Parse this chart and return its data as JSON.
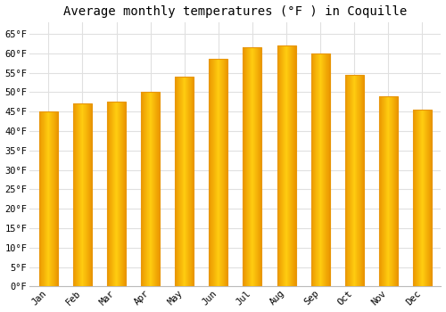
{
  "title": "Average monthly temperatures (°F ) in Coquille",
  "months": [
    "Jan",
    "Feb",
    "Mar",
    "Apr",
    "May",
    "Jun",
    "Jul",
    "Aug",
    "Sep",
    "Oct",
    "Nov",
    "Dec"
  ],
  "values": [
    45.0,
    47.0,
    47.5,
    50.0,
    54.0,
    58.5,
    61.5,
    62.0,
    60.0,
    54.5,
    49.0,
    45.5
  ],
  "bar_color_face": "#FFC020",
  "bar_color_edge": "#E8960A",
  "ylim": [
    0,
    68
  ],
  "yticks": [
    0,
    5,
    10,
    15,
    20,
    25,
    30,
    35,
    40,
    45,
    50,
    55,
    60,
    65
  ],
  "ytick_labels": [
    "0°F",
    "5°F",
    "10°F",
    "15°F",
    "20°F",
    "25°F",
    "30°F",
    "35°F",
    "40°F",
    "45°F",
    "50°F",
    "55°F",
    "60°F",
    "65°F"
  ],
  "background_color": "#ffffff",
  "grid_color": "#e0e0e0",
  "title_fontsize": 10,
  "tick_fontsize": 7.5,
  "font_family": "monospace",
  "bar_width": 0.55
}
